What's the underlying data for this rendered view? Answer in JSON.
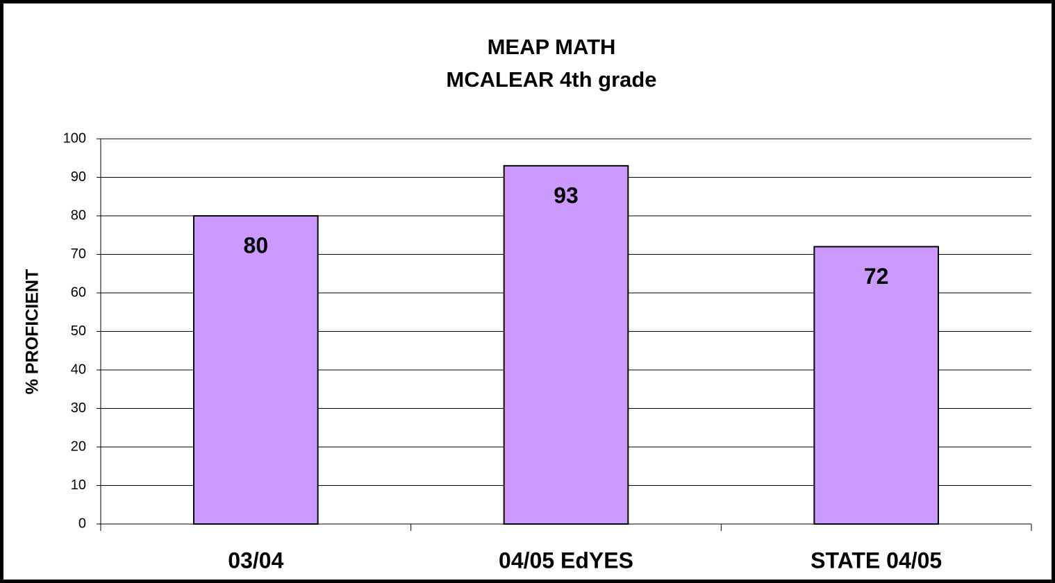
{
  "chart_data": {
    "type": "bar",
    "title": "MEAP MATH",
    "subtitle": "MCALEAR 4th grade",
    "y_label": "% PROFICIENT",
    "categories": [
      "03/04",
      "04/05 EdYES",
      "STATE 04/05"
    ],
    "values": [
      80,
      93,
      72
    ],
    "color": "#cc99ff",
    "ylim": [
      0,
      100
    ],
    "yticks": [
      0,
      10,
      20,
      30,
      40,
      50,
      60,
      70,
      80,
      90,
      100
    ],
    "grid": true
  }
}
